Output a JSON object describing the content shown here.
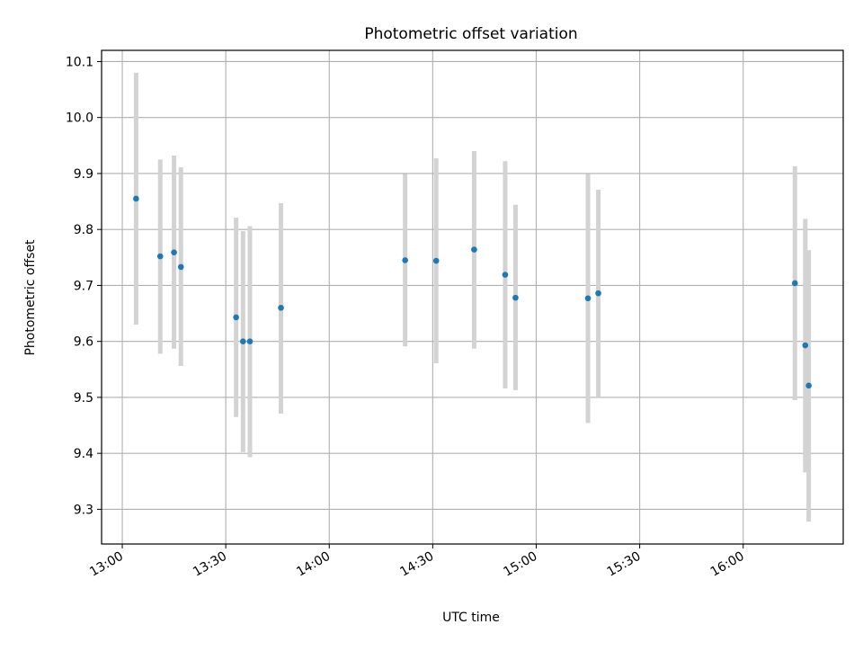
{
  "chart_data": {
    "type": "scatter",
    "title": "Photometric offset variation",
    "xlabel": "UTC time",
    "ylabel": "Photometric offset",
    "xlim": [
      "12:54",
      "16:29"
    ],
    "ylim": [
      9.238,
      10.12
    ],
    "x_ticks": [
      "13:00",
      "13:30",
      "14:00",
      "14:30",
      "15:00",
      "15:30",
      "16:00"
    ],
    "y_ticks": [
      "9.3",
      "9.4",
      "9.5",
      "9.6",
      "9.7",
      "9.8",
      "9.9",
      "10.0",
      "10.1"
    ],
    "grid": true,
    "marker_color": "#1f77b4",
    "errorbar_color": "#d3d3d3",
    "points": [
      {
        "x": "13:04",
        "y": 9.855,
        "low": 9.63,
        "high": 10.08
      },
      {
        "x": "13:11",
        "y": 9.752,
        "low": 9.578,
        "high": 9.925
      },
      {
        "x": "13:15",
        "y": 9.759,
        "low": 9.587,
        "high": 9.932
      },
      {
        "x": "13:17",
        "y": 9.733,
        "low": 9.556,
        "high": 9.911
      },
      {
        "x": "13:33",
        "y": 9.643,
        "low": 9.465,
        "high": 9.821
      },
      {
        "x": "13:35",
        "y": 9.6,
        "low": 9.402,
        "high": 9.797
      },
      {
        "x": "13:37",
        "y": 9.6,
        "low": 9.393,
        "high": 9.806
      },
      {
        "x": "13:46",
        "y": 9.66,
        "low": 9.471,
        "high": 9.847
      },
      {
        "x": "14:22",
        "y": 9.745,
        "low": 9.591,
        "high": 9.899
      },
      {
        "x": "14:31",
        "y": 9.744,
        "low": 9.561,
        "high": 9.927
      },
      {
        "x": "14:42",
        "y": 9.764,
        "low": 9.587,
        "high": 9.94
      },
      {
        "x": "14:51",
        "y": 9.719,
        "low": 9.516,
        "high": 9.922
      },
      {
        "x": "14:54",
        "y": 9.678,
        "low": 9.513,
        "high": 9.844
      },
      {
        "x": "15:15",
        "y": 9.677,
        "low": 9.454,
        "high": 9.899
      },
      {
        "x": "15:18",
        "y": 9.686,
        "low": 9.5,
        "high": 9.871
      },
      {
        "x": "16:15",
        "y": 9.704,
        "low": 9.495,
        "high": 9.913
      },
      {
        "x": "16:18",
        "y": 9.593,
        "low": 9.366,
        "high": 9.819
      },
      {
        "x": "16:19",
        "y": 9.521,
        "low": 9.278,
        "high": 9.763
      }
    ]
  }
}
